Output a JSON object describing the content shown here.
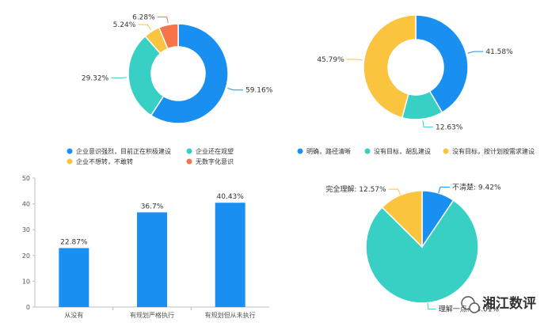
{
  "chart_data": [
    {
      "type": "pie",
      "donut": true,
      "slices": [
        {
          "label": "企业意识强烈，目前正在积极建设",
          "value": 59.16,
          "value_label": "59.16%",
          "color": "#1A8FF2"
        },
        {
          "label": "企业还在观望",
          "value": 29.32,
          "value_label": "29.32%",
          "color": "#38CFC5"
        },
        {
          "label": "企业不想转，不敢转",
          "value": 5.24,
          "value_label": "5.24%",
          "color": "#FBC43E"
        },
        {
          "label": "无数字化意识",
          "value": 6.28,
          "value_label": "6.28%",
          "color": "#F7744A"
        }
      ],
      "legend_placement": "bottom"
    },
    {
      "type": "pie",
      "donut": true,
      "slices": [
        {
          "label": "明确，路径清晰",
          "value": 41.58,
          "value_label": "41.58%",
          "color": "#1A8FF2"
        },
        {
          "label": "没有目标，胡乱建设",
          "value": 12.63,
          "value_label": "12.63%",
          "color": "#38CFC5"
        },
        {
          "label": "没有目标，按计划按需求建设",
          "value": 45.79,
          "value_label": "45.79%",
          "color": "#FBC43E"
        }
      ],
      "legend_placement": "bottom"
    },
    {
      "type": "bar",
      "categories": [
        "从没有",
        "有规划严格执行",
        "有规划但从未执行"
      ],
      "values": [
        22.87,
        36.7,
        40.43
      ],
      "value_labels": [
        "22.87%",
        "36.7%",
        "40.43%"
      ],
      "ylim": [
        0,
        50
      ],
      "yticks": [
        "0",
        "10",
        "20",
        "30",
        "40",
        "50"
      ],
      "grid": false,
      "color": "#1A8FF2"
    },
    {
      "type": "pie",
      "donut": false,
      "slices": [
        {
          "label": "不清楚",
          "value": 9.42,
          "value_label": "不清楚: 9.42%",
          "color": "#1A8FF2"
        },
        {
          "label": "理解一点",
          "value": 78.01,
          "value_label": "理解一点: 78.01%",
          "color": "#38CFC5"
        },
        {
          "label": "完全理解",
          "value": 12.57,
          "value_label": "完全理解: 12.57%",
          "color": "#FBC43E"
        }
      ]
    }
  ],
  "watermark": {
    "text": "湘江数评",
    "icon": "wechat-icon"
  }
}
